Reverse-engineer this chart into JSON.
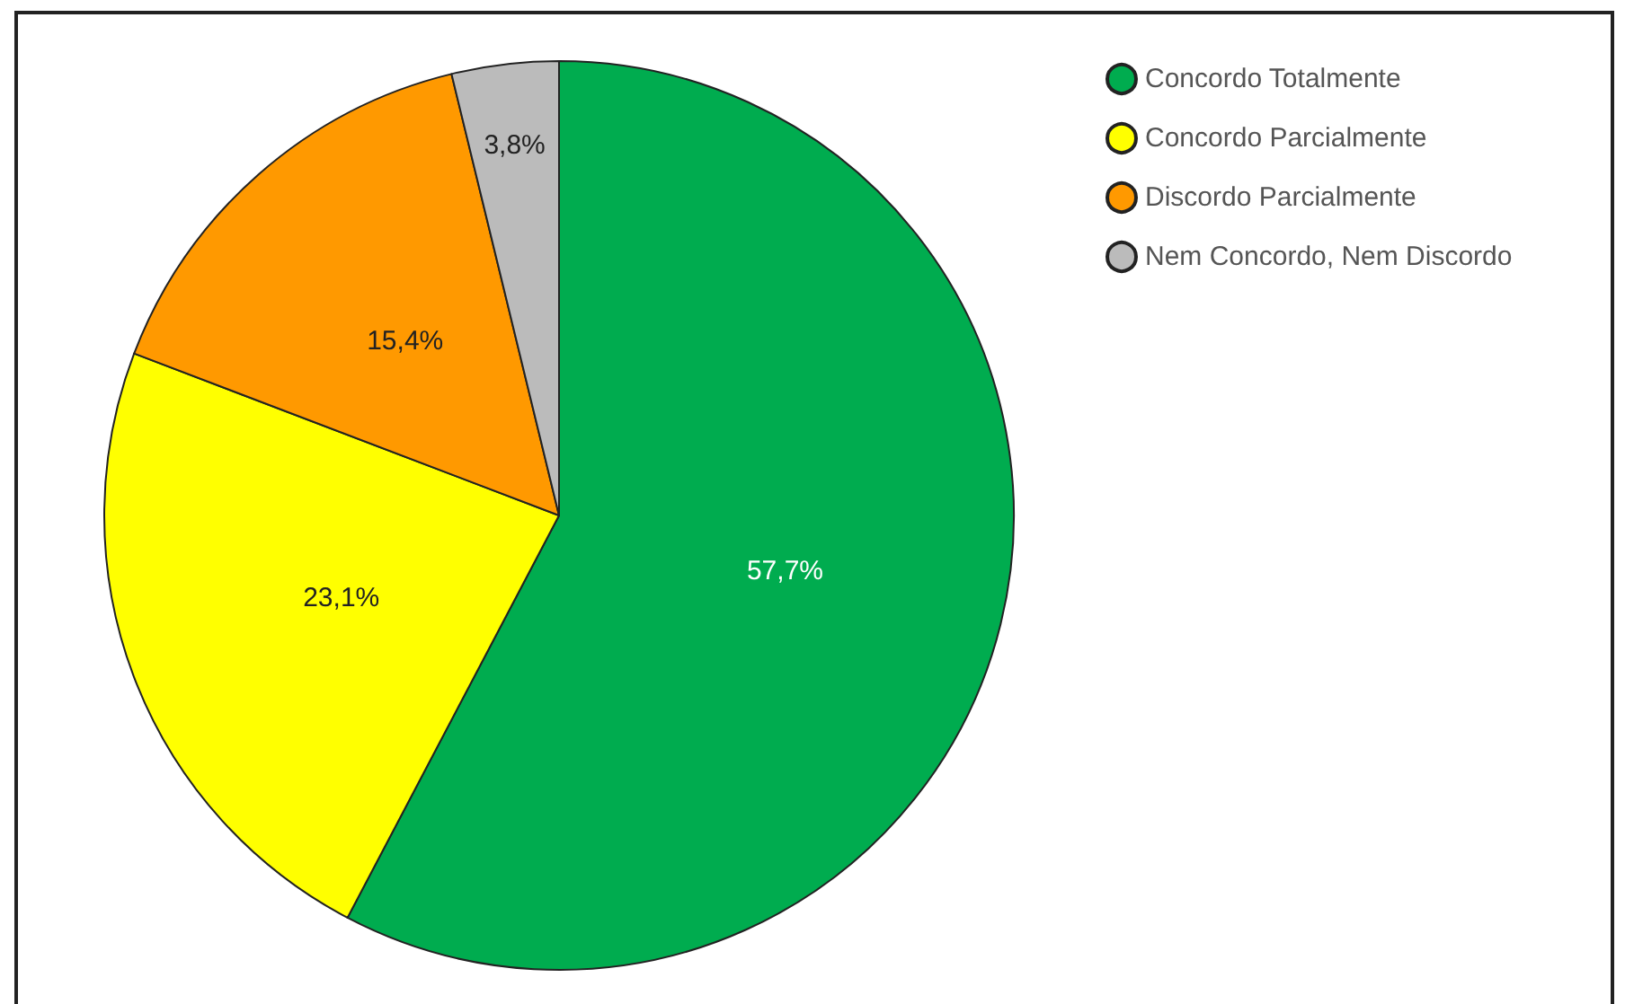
{
  "chart_data": {
    "type": "pie",
    "categories": [
      "Concordo Totalmente",
      "Concordo Parcialmente",
      "Discordo Parcialmente",
      "Nem Concordo, Nem Discordo"
    ],
    "values": [
      57.7,
      23.1,
      15.4,
      3.8
    ],
    "value_labels": [
      "57,7%",
      "23,1%",
      "15,4%",
      "3,8%"
    ],
    "colors": [
      "#00ac4f",
      "#ffff00",
      "#ff9900",
      "#bbbbbb"
    ],
    "legend": "top right"
  }
}
